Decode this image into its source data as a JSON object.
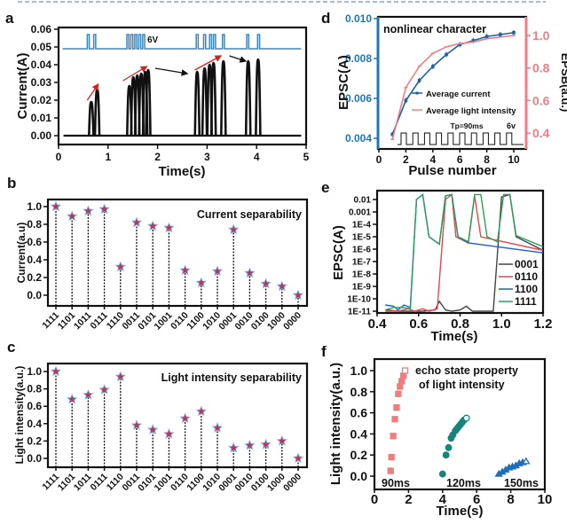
{
  "figure": {
    "panel_labels": [
      "a",
      "b",
      "c",
      "d",
      "e",
      "f"
    ]
  },
  "chart_data": [
    {
      "panel": "a",
      "type": "line",
      "xlabel": "Time(s)",
      "ylabel": "Current(A)",
      "xlim": [
        0,
        5
      ],
      "ylim": [
        0,
        0.06
      ],
      "xticks": [
        "0",
        "1",
        "2",
        "3",
        "4",
        "5"
      ],
      "yticks": [
        "0.00",
        "0.01",
        "0.02",
        "0.03",
        "0.04",
        "0.05",
        "0.06"
      ],
      "annotation": "6V",
      "pulse_baseline": 0.049,
      "pulse_high": 0.057,
      "pulse_times": [
        0.6,
        0.73,
        1.4,
        1.48,
        1.56,
        1.64,
        1.72,
        2.8,
        2.95,
        3.07,
        3.15,
        3.33,
        3.82,
        4.04
      ],
      "current_peaks": [
        {
          "t": 0.66,
          "v": 0.019
        },
        {
          "t": 0.78,
          "v": 0.026
        },
        {
          "t": 1.43,
          "v": 0.028
        },
        {
          "t": 1.51,
          "v": 0.033
        },
        {
          "t": 1.59,
          "v": 0.034
        },
        {
          "t": 1.67,
          "v": 0.035
        },
        {
          "t": 1.75,
          "v": 0.036
        },
        {
          "t": 1.81,
          "v": 0.037
        },
        {
          "t": 2.8,
          "v": 0.036
        },
        {
          "t": 2.95,
          "v": 0.038
        },
        {
          "t": 3.05,
          "v": 0.04
        },
        {
          "t": 3.13,
          "v": 0.041
        },
        {
          "t": 3.33,
          "v": 0.042
        },
        {
          "t": 3.83,
          "v": 0.042
        },
        {
          "t": 4.03,
          "v": 0.043
        }
      ],
      "arrows": [
        {
          "color": "red",
          "from": [
            0.58,
            0.02
          ],
          "to": [
            0.8,
            0.029
          ]
        },
        {
          "color": "red",
          "from": [
            1.3,
            0.031
          ],
          "to": [
            1.78,
            0.039
          ]
        },
        {
          "color": "black",
          "from": [
            1.95,
            0.038
          ],
          "to": [
            2.6,
            0.035
          ]
        },
        {
          "color": "red",
          "from": [
            2.75,
            0.037
          ],
          "to": [
            3.28,
            0.045
          ]
        },
        {
          "color": "black",
          "from": [
            3.45,
            0.045
          ],
          "to": [
            3.78,
            0.042
          ]
        }
      ]
    },
    {
      "panel": "b",
      "type": "scatter",
      "title": "Current separability",
      "xlabel": "",
      "ylabel": "Current(a.u)",
      "ylim": [
        -0.1,
        1.1
      ],
      "yticks": [
        "0.0",
        "0.2",
        "0.4",
        "0.6",
        "0.8",
        "1.0"
      ],
      "categories": [
        "1111",
        "1101",
        "1011",
        "0111",
        "1110",
        "0011",
        "0101",
        "1001",
        "0110",
        "1100",
        "1010",
        "0001",
        "0010",
        "0100",
        "1000",
        "0000"
      ],
      "values": [
        1.0,
        0.89,
        0.95,
        0.97,
        0.32,
        0.82,
        0.78,
        0.76,
        0.28,
        0.14,
        0.27,
        0.74,
        0.25,
        0.13,
        0.1,
        0.0
      ]
    },
    {
      "panel": "c",
      "type": "scatter",
      "title": "Light intensity separability",
      "xlabel": "",
      "ylabel": "Light intensity(a.u.)",
      "ylim": [
        -0.1,
        1.1
      ],
      "yticks": [
        "0.0",
        "0.2",
        "0.4",
        "0.6",
        "0.8",
        "1.0"
      ],
      "categories": [
        "1111",
        "1101",
        "1011",
        "0111",
        "1110",
        "0011",
        "0101",
        "1001",
        "0110",
        "1100",
        "1010",
        "0001",
        "0010",
        "0100",
        "1000",
        "0000"
      ],
      "values": [
        1.0,
        0.68,
        0.73,
        0.79,
        0.94,
        0.38,
        0.33,
        0.28,
        0.46,
        0.54,
        0.35,
        0.12,
        0.15,
        0.16,
        0.2,
        0.0
      ]
    },
    {
      "panel": "d",
      "type": "line",
      "title": "nonlinear character",
      "xlabel": "Pulse number",
      "ylabel": "EPSC(A)",
      "ylabel_right": "EPSB(a.u.)",
      "xlim": [
        0,
        11
      ],
      "ylim": [
        0.0037,
        0.0101
      ],
      "ylim_right": [
        0.33,
        1.08
      ],
      "xticks": [
        "0",
        "2",
        "4",
        "6",
        "8",
        "10"
      ],
      "yticks": [
        "0.004",
        "0.006",
        "0.008",
        "0.010"
      ],
      "yticks_right": [
        "0.4",
        "0.6",
        "0.8",
        "1.0"
      ],
      "x": [
        1,
        2,
        3,
        4,
        5,
        6,
        7,
        8,
        9,
        10
      ],
      "series": [
        {
          "name": "Average current",
          "axis": "left",
          "color": "#1f5fa3",
          "values": [
            0.0042,
            0.0059,
            0.0069,
            0.0076,
            0.0082,
            0.0087,
            0.0089,
            0.0091,
            0.0092,
            0.0093
          ]
        },
        {
          "name": "Average light intensity",
          "axis": "right",
          "color": "#f07c84",
          "values": [
            0.36,
            0.68,
            0.81,
            0.89,
            0.93,
            0.95,
            0.96,
            0.98,
            0.99,
            1.0
          ]
        }
      ],
      "inset_label": "Tp=90ms",
      "inset_voltage": "6v",
      "left_axis_color": "#1f77b4",
      "right_axis_color": "#f07c84"
    },
    {
      "panel": "e",
      "type": "line",
      "xlabel": "Time(s)",
      "ylabel": "EPSC(A)",
      "xlim": [
        0.4,
        1.2
      ],
      "ylim_log10": [
        -11,
        -1.6
      ],
      "xticks": [
        "0.4",
        "0.6",
        "0.8",
        "1.0",
        "1.2"
      ],
      "yticks": [
        "1E-11",
        "1E-10",
        "1E-9",
        "1E-8",
        "1E-7",
        "1E-6",
        "1E-5",
        "1E-4",
        "0.001",
        "0.01"
      ],
      "legend_position": "bottom-right",
      "series": [
        {
          "name": "0001",
          "color": "#444444",
          "points": [
            [
              0.44,
              -10.9
            ],
            [
              0.5,
              -11
            ],
            [
              0.56,
              -11
            ],
            [
              0.62,
              -11
            ],
            [
              0.68,
              -10.9
            ],
            [
              0.7,
              -10.2
            ],
            [
              0.73,
              -10.9
            ],
            [
              0.76,
              -11
            ],
            [
              0.8,
              -10.9
            ],
            [
              0.83,
              -10.6
            ],
            [
              0.86,
              -11
            ],
            [
              0.9,
              -11
            ],
            [
              0.96,
              -11
            ],
            [
              1.0,
              -1.8
            ],
            [
              1.04,
              -1.6
            ],
            [
              1.07,
              -5
            ],
            [
              1.2,
              -6.1
            ]
          ]
        },
        {
          "name": "0110",
          "color": "#e8474a",
          "points": [
            [
              0.44,
              -11
            ],
            [
              0.5,
              -11
            ],
            [
              0.55,
              -10.8
            ],
            [
              0.58,
              -11
            ],
            [
              0.62,
              -10.8
            ],
            [
              0.65,
              -11
            ],
            [
              0.69,
              -10.8
            ],
            [
              0.73,
              -2
            ],
            [
              0.76,
              -1.6
            ],
            [
              0.78,
              -5
            ],
            [
              0.84,
              -5.5
            ],
            [
              0.87,
              -1.7
            ],
            [
              0.9,
              -5
            ],
            [
              1.2,
              -6.1
            ]
          ]
        },
        {
          "name": "1100",
          "color": "#1f5fd0",
          "points": [
            [
              0.44,
              -10.5
            ],
            [
              0.48,
              -10.6
            ],
            [
              0.5,
              -10.9
            ],
            [
              0.53,
              -10.5
            ],
            [
              0.56,
              -10.7
            ],
            [
              0.59,
              -2
            ],
            [
              0.62,
              -1.6
            ],
            [
              0.65,
              -5
            ],
            [
              0.7,
              -5.6
            ],
            [
              0.73,
              -1.7
            ],
            [
              0.76,
              -1.6
            ],
            [
              0.79,
              -5
            ],
            [
              0.84,
              -5.5
            ],
            [
              1.2,
              -6.3
            ]
          ]
        },
        {
          "name": "1111",
          "color": "#2ca05a",
          "points": [
            [
              0.44,
              -10.9
            ],
            [
              0.48,
              -10.7
            ],
            [
              0.52,
              -10.7
            ],
            [
              0.56,
              -10.8
            ],
            [
              0.59,
              -2
            ],
            [
              0.62,
              -1.6
            ],
            [
              0.65,
              -5
            ],
            [
              0.7,
              -5.6
            ],
            [
              0.73,
              -1.7
            ],
            [
              0.76,
              -1.6
            ],
            [
              0.79,
              -5
            ],
            [
              0.84,
              -5.4
            ],
            [
              0.87,
              -1.6
            ],
            [
              0.9,
              -1.6
            ],
            [
              0.93,
              -5
            ],
            [
              0.98,
              -5.4
            ],
            [
              1.01,
              -1.6
            ],
            [
              1.04,
              -1.6
            ],
            [
              1.07,
              -4.9
            ],
            [
              1.2,
              -5.8
            ]
          ]
        }
      ]
    },
    {
      "panel": "f",
      "type": "scatter",
      "title_line1": "echo state property",
      "title_line2": "of light intensity",
      "xlabel": "Time(s)",
      "ylabel": "Light intensity(a.u.)",
      "xlim": [
        0,
        10
      ],
      "ylim": [
        -0.1,
        1.1
      ],
      "xticks": [
        "0",
        "2",
        "4",
        "6",
        "8",
        "10"
      ],
      "yticks": [
        "0.0",
        "0.2",
        "0.4",
        "0.6",
        "0.8",
        "1.0"
      ],
      "series": [
        {
          "name": "90ms",
          "marker": "square",
          "color": "#f07c7c",
          "x": [
            0.95,
            1.0,
            1.1,
            1.2,
            1.3,
            1.4,
            1.5,
            1.6,
            1.7,
            1.8
          ],
          "y": [
            0.05,
            0.18,
            0.38,
            0.54,
            0.65,
            0.78,
            0.85,
            0.9,
            0.95,
            1.0
          ]
        },
        {
          "name": "120ms",
          "marker": "circle",
          "color": "#17857a",
          "x": [
            4.0,
            4.2,
            4.35,
            4.5,
            4.6,
            4.75,
            4.85,
            4.95,
            5.05,
            5.15,
            5.25,
            5.4
          ],
          "y": [
            0.02,
            0.2,
            0.27,
            0.36,
            0.39,
            0.43,
            0.45,
            0.47,
            0.49,
            0.51,
            0.53,
            0.55
          ]
        },
        {
          "name": "150ms",
          "marker": "triangle",
          "color": "#1f6fb8",
          "x": [
            7.3,
            7.5,
            7.7,
            7.9,
            8.1,
            8.3,
            8.5,
            8.7,
            8.9
          ],
          "y": [
            0.02,
            0.04,
            0.06,
            0.08,
            0.09,
            0.1,
            0.12,
            0.13,
            0.14
          ]
        }
      ]
    }
  ]
}
